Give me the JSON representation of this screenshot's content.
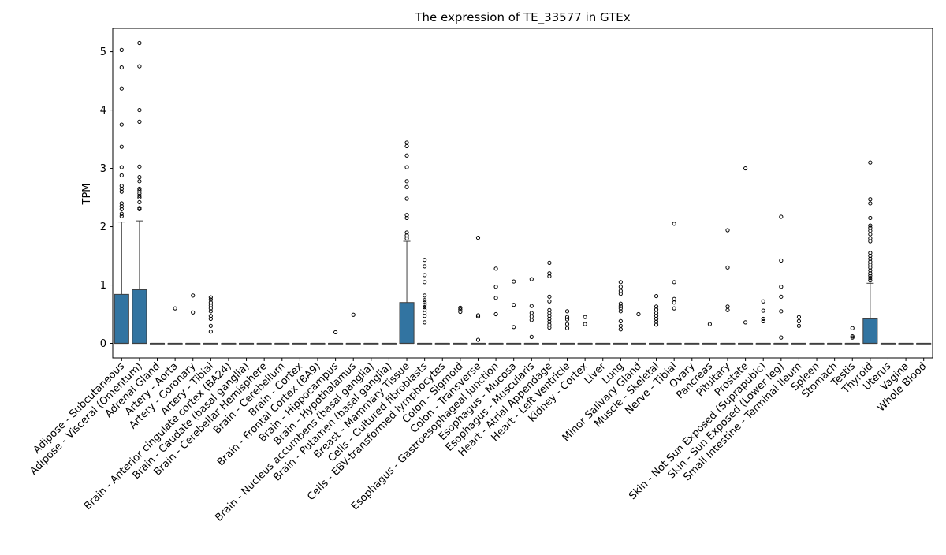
{
  "chart_data": {
    "type": "box",
    "title": "The expression of TE_33577 in GTEx",
    "xlabel": "",
    "ylabel": "TPM",
    "ylim": [
      -0.25,
      5.4
    ],
    "yticks": [
      0,
      1,
      2,
      3,
      4,
      5
    ],
    "box_color": "#3274a1",
    "categories": [
      "Adipose - Subcutaneous",
      "Adipose - Visceral (Omentum)",
      "Adrenal Gland",
      "Artery - Aorta",
      "Artery - Coronary",
      "Artery - Tibial",
      "Brain - Anterior cingulate cortex (BA24)",
      "Brain - Caudate (basal ganglia)",
      "Brain - Cerebellar Hemisphere",
      "Brain - Cerebellum",
      "Brain - Cortex",
      "Brain - Frontal Cortex (BA9)",
      "Brain - Hippocampus",
      "Brain - Hypothalamus",
      "Brain - Nucleus accumbens (basal ganglia)",
      "Brain - Putamen (basal ganglia)",
      "Breast - Mammary Tissue",
      "Cells - Cultured fibroblasts",
      "Cells - EBV-transformed lymphocytes",
      "Colon - Sigmoid",
      "Colon - Transverse",
      "Esophagus - Gastroesophageal Junction",
      "Esophagus - Mucosa",
      "Esophagus - Muscularis",
      "Heart - Atrial Appendage",
      "Heart - Left Ventricle",
      "Kidney - Cortex",
      "Liver",
      "Lung",
      "Minor Salivary Gland",
      "Muscle - Skeletal",
      "Nerve - Tibial",
      "Ovary",
      "Pancreas",
      "Pituitary",
      "Prostate",
      "Skin - Not Sun Exposed (Suprapubic)",
      "Skin - Sun Exposed (Lower leg)",
      "Small Intestine - Terminal Ileum",
      "Spleen",
      "Stomach",
      "Testis",
      "Thyroid",
      "Uterus",
      "Vagina",
      "Whole Blood"
    ],
    "boxes": [
      {
        "q1": 0,
        "median": 0,
        "q3": 0.84,
        "whisker_low": 0,
        "whisker_high": 2.08,
        "outliers": [
          2.18,
          2.22,
          2.3,
          2.35,
          2.4,
          2.6,
          2.65,
          2.7,
          2.88,
          3.02,
          3.37,
          3.75,
          4.37,
          4.73,
          5.03
        ]
      },
      {
        "q1": 0,
        "median": 0,
        "q3": 0.92,
        "whisker_low": 0,
        "whisker_high": 2.1,
        "outliers": [
          2.3,
          2.32,
          2.42,
          2.5,
          2.53,
          2.57,
          2.62,
          2.65,
          2.78,
          2.85,
          3.03,
          3.8,
          4.0,
          4.75,
          5.15
        ]
      },
      {
        "q1": 0,
        "median": 0,
        "q3": 0,
        "whisker_low": 0,
        "whisker_high": 0,
        "outliers": []
      },
      {
        "q1": 0,
        "median": 0,
        "q3": 0,
        "whisker_low": 0,
        "whisker_high": 0,
        "outliers": [
          0.6
        ]
      },
      {
        "q1": 0,
        "median": 0,
        "q3": 0,
        "whisker_low": 0,
        "whisker_high": 0,
        "outliers": [
          0.53,
          0.82
        ]
      },
      {
        "q1": 0,
        "median": 0,
        "q3": 0,
        "whisker_low": 0,
        "whisker_high": 0,
        "outliers": [
          0.2,
          0.3,
          0.42,
          0.47,
          0.55,
          0.6,
          0.65,
          0.7,
          0.75,
          0.79
        ]
      },
      {
        "q1": 0,
        "median": 0,
        "q3": 0,
        "whisker_low": 0,
        "whisker_high": 0,
        "outliers": []
      },
      {
        "q1": 0,
        "median": 0,
        "q3": 0,
        "whisker_low": 0,
        "whisker_high": 0,
        "outliers": []
      },
      {
        "q1": 0,
        "median": 0,
        "q3": 0,
        "whisker_low": 0,
        "whisker_high": 0,
        "outliers": []
      },
      {
        "q1": 0,
        "median": 0,
        "q3": 0,
        "whisker_low": 0,
        "whisker_high": 0,
        "outliers": []
      },
      {
        "q1": 0,
        "median": 0,
        "q3": 0,
        "whisker_low": 0,
        "whisker_high": 0,
        "outliers": []
      },
      {
        "q1": 0,
        "median": 0,
        "q3": 0,
        "whisker_low": 0,
        "whisker_high": 0,
        "outliers": []
      },
      {
        "q1": 0,
        "median": 0,
        "q3": 0,
        "whisker_low": 0,
        "whisker_high": 0,
        "outliers": [
          0.19
        ]
      },
      {
        "q1": 0,
        "median": 0,
        "q3": 0,
        "whisker_low": 0,
        "whisker_high": 0,
        "outliers": [
          0.49
        ]
      },
      {
        "q1": 0,
        "median": 0,
        "q3": 0,
        "whisker_low": 0,
        "whisker_high": 0,
        "outliers": []
      },
      {
        "q1": 0,
        "median": 0,
        "q3": 0,
        "whisker_low": 0,
        "whisker_high": 0,
        "outliers": []
      },
      {
        "q1": 0,
        "median": 0,
        "q3": 0.7,
        "whisker_low": 0,
        "whisker_high": 1.75,
        "outliers": [
          1.8,
          1.85,
          1.9,
          2.15,
          2.2,
          2.48,
          2.68,
          2.78,
          3.02,
          3.22,
          3.38,
          3.44
        ]
      },
      {
        "q1": 0,
        "median": 0,
        "q3": 0,
        "whisker_low": 0,
        "whisker_high": 0,
        "outliers": [
          0.36,
          0.47,
          0.52,
          0.58,
          0.62,
          0.66,
          0.7,
          0.74,
          0.82,
          1.05,
          1.17,
          1.32,
          1.43
        ]
      },
      {
        "q1": 0,
        "median": 0,
        "q3": 0,
        "whisker_low": 0,
        "whisker_high": 0,
        "outliers": []
      },
      {
        "q1": 0,
        "median": 0,
        "q3": 0,
        "whisker_low": 0,
        "whisker_high": 0,
        "outliers": [
          0.54,
          0.58,
          0.61
        ]
      },
      {
        "q1": 0,
        "median": 0,
        "q3": 0,
        "whisker_low": 0,
        "whisker_high": 0,
        "outliers": [
          0.06,
          0.46,
          0.48,
          1.81
        ]
      },
      {
        "q1": 0,
        "median": 0,
        "q3": 0,
        "whisker_low": 0,
        "whisker_high": 0,
        "outliers": [
          0.5,
          0.78,
          0.97,
          1.28
        ]
      },
      {
        "q1": 0,
        "median": 0,
        "q3": 0,
        "whisker_low": 0,
        "whisker_high": 0,
        "outliers": [
          0.28,
          0.66,
          1.06
        ]
      },
      {
        "q1": 0,
        "median": 0,
        "q3": 0,
        "whisker_low": 0,
        "whisker_high": 0,
        "outliers": [
          0.11,
          0.4,
          0.46,
          0.52,
          0.64,
          1.1
        ]
      },
      {
        "q1": 0,
        "median": 0,
        "q3": 0,
        "whisker_low": 0,
        "whisker_high": 0,
        "outliers": [
          0.27,
          0.32,
          0.37,
          0.42,
          0.47,
          0.52,
          0.57,
          0.72,
          0.8,
          1.15,
          1.2,
          1.38
        ]
      },
      {
        "q1": 0,
        "median": 0,
        "q3": 0,
        "whisker_low": 0,
        "whisker_high": 0,
        "outliers": [
          0.26,
          0.33,
          0.41,
          0.45,
          0.55
        ]
      },
      {
        "q1": 0,
        "median": 0,
        "q3": 0,
        "whisker_low": 0,
        "whisker_high": 0,
        "outliers": [
          0.33,
          0.45
        ]
      },
      {
        "q1": 0,
        "median": 0,
        "q3": 0,
        "whisker_low": 0,
        "whisker_high": 0,
        "outliers": []
      },
      {
        "q1": 0,
        "median": 0,
        "q3": 0,
        "whisker_low": 0,
        "whisker_high": 0,
        "outliers": [
          0.24,
          0.3,
          0.38,
          0.55,
          0.6,
          0.64,
          0.68,
          0.85,
          0.9,
          0.97,
          1.05
        ]
      },
      {
        "q1": 0,
        "median": 0,
        "q3": 0,
        "whisker_low": 0,
        "whisker_high": 0,
        "outliers": [
          0.5
        ]
      },
      {
        "q1": 0,
        "median": 0,
        "q3": 0,
        "whisker_low": 0,
        "whisker_high": 0,
        "outliers": [
          0.32,
          0.37,
          0.42,
          0.47,
          0.52,
          0.58,
          0.63,
          0.81
        ]
      },
      {
        "q1": 0,
        "median": 0,
        "q3": 0,
        "whisker_low": 0,
        "whisker_high": 0,
        "outliers": [
          0.6,
          0.7,
          0.76,
          1.05,
          2.05
        ]
      },
      {
        "q1": 0,
        "median": 0,
        "q3": 0,
        "whisker_low": 0,
        "whisker_high": 0,
        "outliers": []
      },
      {
        "q1": 0,
        "median": 0,
        "q3": 0,
        "whisker_low": 0,
        "whisker_high": 0,
        "outliers": [
          0.33
        ]
      },
      {
        "q1": 0,
        "median": 0,
        "q3": 0,
        "whisker_low": 0,
        "whisker_high": 0,
        "outliers": [
          0.57,
          0.63,
          1.3,
          1.94
        ]
      },
      {
        "q1": 0,
        "median": 0,
        "q3": 0,
        "whisker_low": 0,
        "whisker_high": 0,
        "outliers": [
          0.36,
          3.0
        ]
      },
      {
        "q1": 0,
        "median": 0,
        "q3": 0,
        "whisker_low": 0,
        "whisker_high": 0,
        "outliers": [
          0.38,
          0.42,
          0.56,
          0.72
        ]
      },
      {
        "q1": 0,
        "median": 0,
        "q3": 0,
        "whisker_low": 0,
        "whisker_high": 0,
        "outliers": [
          0.1,
          0.55,
          0.8,
          0.97,
          1.42,
          2.17
        ]
      },
      {
        "q1": 0,
        "median": 0,
        "q3": 0,
        "whisker_low": 0,
        "whisker_high": 0,
        "outliers": [
          0.3,
          0.38,
          0.45
        ]
      },
      {
        "q1": 0,
        "median": 0,
        "q3": 0,
        "whisker_low": 0,
        "whisker_high": 0,
        "outliers": []
      },
      {
        "q1": 0,
        "median": 0,
        "q3": 0,
        "whisker_low": 0,
        "whisker_high": 0,
        "outliers": []
      },
      {
        "q1": 0,
        "median": 0,
        "q3": 0,
        "whisker_low": 0,
        "whisker_high": 0,
        "outliers": [
          0.1,
          0.12,
          0.26
        ]
      },
      {
        "q1": 0,
        "median": 0,
        "q3": 0.42,
        "whisker_low": 0,
        "whisker_high": 1.03,
        "outliers": [
          1.08,
          1.12,
          1.16,
          1.2,
          1.25,
          1.3,
          1.35,
          1.4,
          1.45,
          1.5,
          1.55,
          1.75,
          1.8,
          1.87,
          1.93,
          1.98,
          2.02,
          2.15,
          2.4,
          2.47,
          3.1
        ]
      },
      {
        "q1": 0,
        "median": 0,
        "q3": 0,
        "whisker_low": 0,
        "whisker_high": 0,
        "outliers": []
      },
      {
        "q1": 0,
        "median": 0,
        "q3": 0,
        "whisker_low": 0,
        "whisker_high": 0,
        "outliers": []
      },
      {
        "q1": 0,
        "median": 0,
        "q3": 0,
        "whisker_low": 0,
        "whisker_high": 0,
        "outliers": []
      }
    ]
  }
}
